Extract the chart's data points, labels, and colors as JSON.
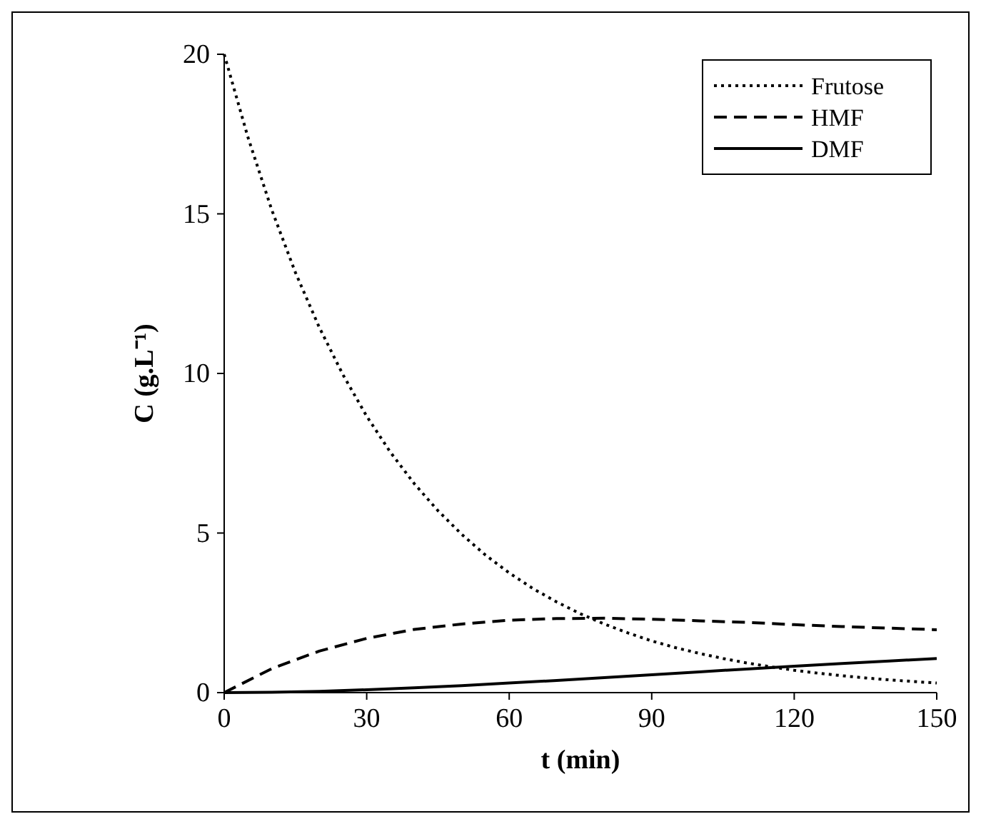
{
  "chart_data": {
    "type": "line",
    "xlabel": "t (min)",
    "ylabel": "C (g.L⁻¹)",
    "xlim": [
      0,
      150
    ],
    "ylim": [
      0,
      20
    ],
    "xticks": [
      0,
      30,
      60,
      90,
      120,
      150
    ],
    "yticks": [
      0,
      5,
      10,
      15,
      20
    ],
    "grid": false,
    "legend": "top right",
    "series": [
      {
        "name": "Frutose",
        "color": "#000000",
        "line_style": "dotted",
        "x": [
          0,
          5,
          10,
          15,
          20,
          25,
          30,
          35,
          40,
          45,
          50,
          55,
          60,
          65,
          70,
          75,
          80,
          85,
          90,
          95,
          100,
          105,
          110,
          115,
          120,
          125,
          130,
          135,
          140,
          145,
          150
        ],
        "values": [
          20,
          17.4,
          15.13,
          13.16,
          11.45,
          9.96,
          8.66,
          7.53,
          6.55,
          5.7,
          4.96,
          4.31,
          3.75,
          3.26,
          2.84,
          2.47,
          2.15,
          1.87,
          1.62,
          1.41,
          1.23,
          1.07,
          0.93,
          0.81,
          0.7,
          0.61,
          0.53,
          0.46,
          0.4,
          0.35,
          0.3
        ]
      },
      {
        "name": "HMF",
        "color": "#000000",
        "line_style": "dashed",
        "x": [
          0,
          10,
          20,
          30,
          40,
          50,
          60,
          70,
          80,
          90,
          100,
          110,
          120,
          130,
          140,
          150
        ],
        "values": [
          0,
          0.75,
          1.3,
          1.7,
          1.98,
          2.15,
          2.27,
          2.32,
          2.33,
          2.3,
          2.25,
          2.2,
          2.13,
          2.07,
          2.02,
          1.97
        ]
      },
      {
        "name": "DMF",
        "color": "#000000",
        "line_style": "solid",
        "x": [
          0,
          10,
          20,
          30,
          40,
          50,
          60,
          70,
          80,
          90,
          100,
          110,
          120,
          130,
          140,
          150
        ],
        "values": [
          0,
          0.01,
          0.04,
          0.09,
          0.15,
          0.22,
          0.3,
          0.38,
          0.47,
          0.56,
          0.65,
          0.74,
          0.83,
          0.91,
          0.99,
          1.07
        ]
      }
    ]
  }
}
